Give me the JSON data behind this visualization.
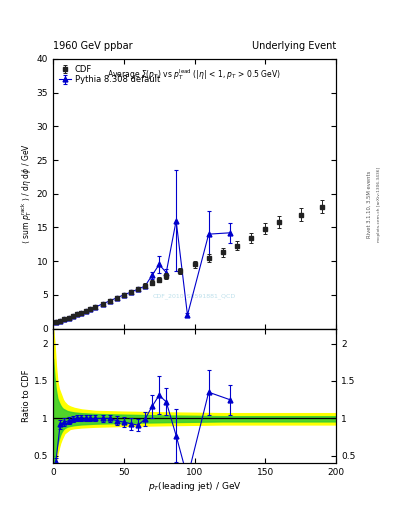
{
  "title_left": "1960 GeV ppbar",
  "title_right": "Underlying Event",
  "watermark": "CDF_2010_S8591881_QCD",
  "xlabel": "p_{T}(leading jet) / GeV",
  "ylabel_main": "⟨ sum p_T^{rack} ⟩ / dη dφ / GeV",
  "ylabel_ratio": "Ratio to CDF",
  "right_label1": "Rivet 3.1.10, 3.5M events",
  "right_label2": "mcplots.cern.ch [arXiv:1306.3436]",
  "cdf_x": [
    2,
    5,
    8,
    11,
    14,
    17,
    20,
    23,
    26,
    30,
    35,
    40,
    45,
    50,
    55,
    60,
    65,
    70,
    75,
    80,
    90,
    100,
    110,
    120,
    130,
    140,
    150,
    160,
    175,
    190
  ],
  "cdf_y": [
    1.0,
    1.15,
    1.35,
    1.6,
    1.85,
    2.1,
    2.35,
    2.6,
    2.85,
    3.2,
    3.65,
    4.1,
    4.55,
    5.0,
    5.45,
    5.9,
    6.35,
    6.8,
    7.25,
    7.8,
    8.5,
    9.5,
    10.4,
    11.3,
    12.3,
    13.4,
    14.8,
    15.8,
    16.9,
    18.1
  ],
  "cdf_yerr": [
    0.07,
    0.08,
    0.09,
    0.1,
    0.11,
    0.12,
    0.13,
    0.14,
    0.15,
    0.17,
    0.19,
    0.22,
    0.24,
    0.27,
    0.3,
    0.33,
    0.36,
    0.38,
    0.41,
    0.44,
    0.48,
    0.54,
    0.59,
    0.64,
    0.7,
    0.76,
    0.84,
    0.9,
    0.96,
    1.03
  ],
  "pythia_x": [
    2,
    5,
    8,
    11,
    14,
    17,
    20,
    23,
    26,
    30,
    35,
    40,
    45,
    50,
    55,
    60,
    65,
    70,
    75,
    80,
    87,
    95,
    110,
    125
  ],
  "pythia_y": [
    1.0,
    1.15,
    1.35,
    1.6,
    1.85,
    2.1,
    2.35,
    2.6,
    2.85,
    3.2,
    3.65,
    4.1,
    4.55,
    5.0,
    5.4,
    5.85,
    6.3,
    7.9,
    9.5,
    8.3,
    16.0,
    2.0,
    14.0,
    14.2
  ],
  "pythia_yerr": [
    0.05,
    0.06,
    0.07,
    0.08,
    0.09,
    0.1,
    0.11,
    0.12,
    0.13,
    0.15,
    0.17,
    0.2,
    0.22,
    0.25,
    0.28,
    0.32,
    0.36,
    0.5,
    1.2,
    0.5,
    7.5,
    0.3,
    3.5,
    1.5
  ],
  "ratio_x": [
    2,
    5,
    8,
    11,
    14,
    17,
    20,
    23,
    26,
    30,
    35,
    40,
    45,
    50,
    55,
    60,
    65,
    70,
    75,
    80,
    87,
    95,
    110,
    125
  ],
  "ratio_y": [
    0.42,
    0.92,
    0.95,
    0.97,
    0.99,
    1.0,
    1.01,
    1.0,
    1.0,
    1.0,
    1.0,
    1.0,
    0.97,
    0.95,
    0.93,
    0.91,
    0.99,
    1.16,
    1.31,
    1.22,
    0.77,
    0.21,
    1.35,
    1.25
  ],
  "ratio_yerr": [
    0.05,
    0.06,
    0.05,
    0.05,
    0.04,
    0.04,
    0.04,
    0.04,
    0.04,
    0.04,
    0.05,
    0.05,
    0.06,
    0.07,
    0.08,
    0.08,
    0.09,
    0.15,
    0.25,
    0.18,
    0.35,
    0.12,
    0.3,
    0.2
  ],
  "yb_x": [
    0,
    1,
    2,
    3,
    4,
    5,
    6,
    7,
    8,
    10,
    12,
    15,
    20,
    30,
    50,
    80,
    120,
    200
  ],
  "yb_upper": [
    2.2,
    2.0,
    1.7,
    1.5,
    1.4,
    1.35,
    1.3,
    1.25,
    1.22,
    1.18,
    1.16,
    1.14,
    1.12,
    1.1,
    1.09,
    1.08,
    1.07,
    1.07
  ],
  "yb_lower": [
    0.2,
    0.3,
    0.42,
    0.52,
    0.6,
    0.67,
    0.72,
    0.76,
    0.8,
    0.83,
    0.86,
    0.87,
    0.88,
    0.89,
    0.9,
    0.91,
    0.92,
    0.92
  ],
  "gb_x": [
    0,
    1,
    2,
    3,
    4,
    5,
    6,
    7,
    8,
    10,
    12,
    15,
    20,
    30,
    50,
    80,
    120,
    200
  ],
  "gb_upper": [
    1.8,
    1.55,
    1.38,
    1.27,
    1.22,
    1.18,
    1.15,
    1.13,
    1.12,
    1.1,
    1.09,
    1.08,
    1.07,
    1.06,
    1.05,
    1.04,
    1.03,
    1.03
  ],
  "gb_lower": [
    0.28,
    0.42,
    0.55,
    0.65,
    0.72,
    0.78,
    0.82,
    0.85,
    0.87,
    0.89,
    0.9,
    0.91,
    0.92,
    0.93,
    0.94,
    0.95,
    0.96,
    0.96
  ],
  "xlim": [
    0,
    200
  ],
  "ylim_main": [
    0,
    40
  ],
  "ylim_ratio": [
    0.4,
    2.2
  ],
  "yticks_main": [
    0,
    5,
    10,
    15,
    20,
    25,
    30,
    35,
    40
  ],
  "yticks_ratio": [
    0.5,
    1.0,
    1.5,
    2.0
  ],
  "xticks": [
    0,
    50,
    100,
    150,
    200
  ],
  "color_cdf": "#222222",
  "color_pythia": "#0000cc",
  "color_yellow": "#ffff00",
  "color_green": "#33cc33",
  "bg_color": "#ffffff"
}
